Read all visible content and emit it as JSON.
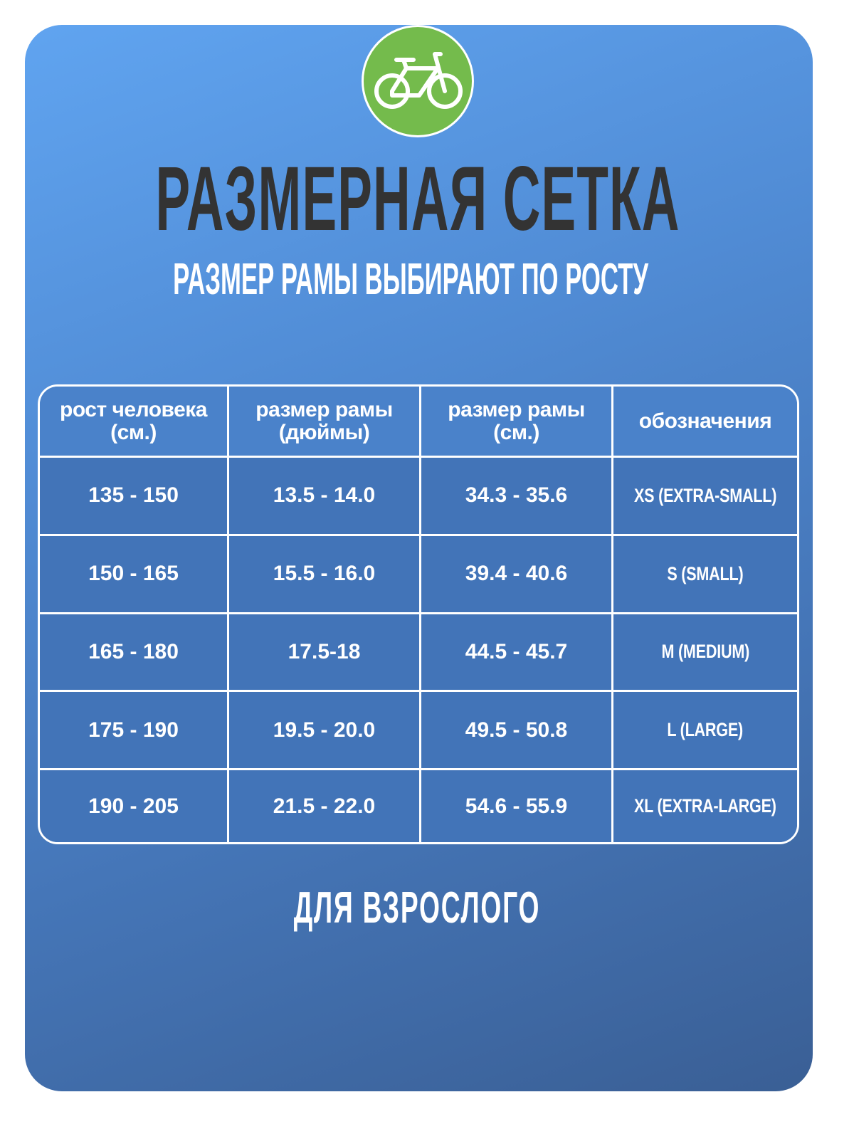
{
  "logo": {
    "icon": "bicycle-icon",
    "color": "#74bb4c"
  },
  "title": "РАЗМЕРНАЯ СЕТКА",
  "subtitle": "РАЗМЕР РАМЫ ВЫБИРАЮТ ПО РОСТУ",
  "table": {
    "headers": [
      {
        "line1": "рост человека",
        "line2": "(см.)"
      },
      {
        "line1": "размер рамы",
        "line2": "(дюймы)"
      },
      {
        "line1": "размер рамы",
        "line2": "(см.)"
      },
      {
        "line1": "обозначения",
        "line2": ""
      }
    ],
    "rows": [
      [
        "135 - 150",
        "13.5 - 14.0",
        "34.3 - 35.6",
        "XS (EXTRA-SMALL)"
      ],
      [
        "150 - 165",
        "15.5 - 16.0",
        "39.4 - 40.6",
        "S (SMALL)"
      ],
      [
        "165 - 180",
        "17.5-18",
        "44.5 - 45.7",
        "M (MEDIUM)"
      ],
      [
        "175 - 190",
        "19.5 - 20.0",
        "49.5 - 50.8",
        "L (LARGE)"
      ],
      [
        "190 - 205",
        "21.5 - 22.0",
        "54.6 - 55.9",
        "XL (EXTRA-LARGE)"
      ]
    ]
  },
  "footer": "ДЛЯ ВЗРОСЛОГО"
}
